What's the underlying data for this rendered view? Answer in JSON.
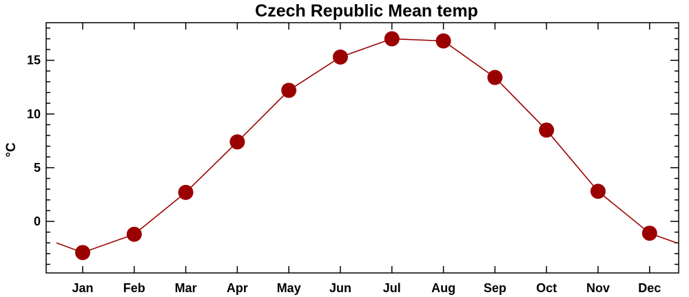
{
  "chart_data": {
    "type": "line",
    "title": "Czech Republic Mean temp",
    "xlabel": "",
    "ylabel": "°C",
    "categories": [
      "Jan",
      "Feb",
      "Mar",
      "Apr",
      "May",
      "Jun",
      "Jul",
      "Aug",
      "Sep",
      "Oct",
      "Nov",
      "Dec"
    ],
    "series": [
      {
        "values": [
          -2.9,
          -1.2,
          2.7,
          7.4,
          12.2,
          15.3,
          17.0,
          16.8,
          13.4,
          8.5,
          2.8,
          -1.1
        ],
        "color": "#9b0000"
      }
    ],
    "line_extension": {
      "before": -2.0,
      "after": -2.0
    },
    "yticks": [
      0,
      5,
      10,
      15
    ],
    "ylim": [
      -4.8,
      18.5
    ],
    "grid": false,
    "marker": "circle"
  }
}
